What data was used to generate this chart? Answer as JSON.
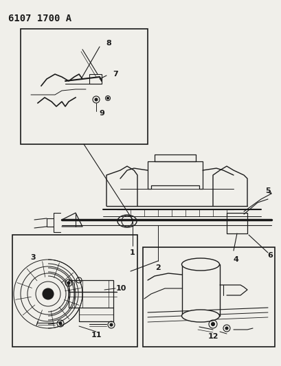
{
  "title": "6107 1700 A",
  "bg": "#f0efea",
  "lc": "#1a1a1a",
  "white": "#ffffff",
  "fig_w": 4.1,
  "fig_h": 5.33,
  "dpi": 100,
  "title_fs": 10,
  "label_fs": 7.5
}
